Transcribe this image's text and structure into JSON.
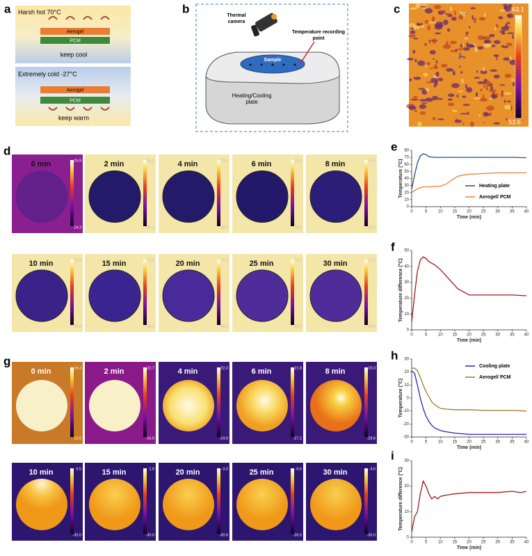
{
  "panel_labels": [
    "a",
    "b",
    "c",
    "d",
    "e",
    "f",
    "g",
    "h",
    "i"
  ],
  "panel_a": {
    "hot": {
      "title": "Harsh hot 70°C",
      "layers": [
        "Aerogel",
        "PCM"
      ],
      "caption": "keep cool"
    },
    "cold": {
      "title": "Extremely cold  -27°C",
      "layers": [
        "Aerogel",
        "PCM"
      ],
      "caption": "keep warm"
    }
  },
  "panel_b": {
    "camera": "Thermal camera",
    "point": "Temperature recording point",
    "sample": "Sample",
    "plate": "Heating/Cooling plate"
  },
  "panel_c": {
    "colorbar_max": "63.1",
    "colorbar_min": "53.6"
  },
  "panel_d": {
    "tiles": [
      {
        "time": "0 min",
        "max": "25.9",
        "min": "24.3"
      },
      {
        "time": "2 min",
        "max": "56.2",
        "min": "27.2"
      },
      {
        "time": "4 min",
        "max": "70.2",
        "min": "28.6"
      },
      {
        "time": "6 min",
        "max": "71.2",
        "min": "30.6"
      },
      {
        "time": "8 min",
        "max": "70.6",
        "min": "32.5"
      },
      {
        "time": "10 min",
        "max": "70.6",
        "min": "38.8"
      },
      {
        "time": "15 min",
        "max": "71.2",
        "min": "46.2"
      },
      {
        "time": "20 min",
        "max": "71.2",
        "min": "48.2"
      },
      {
        "time": "25 min",
        "max": "71.2",
        "min": "48.3"
      },
      {
        "time": "30 min",
        "max": "71.2",
        "min": "48.2"
      }
    ]
  },
  "panel_g": {
    "tiles": [
      {
        "time": "0 min",
        "max": "24.3",
        "min": "13.6"
      },
      {
        "time": "2 min",
        "max": "22.7",
        "min": "-16.9"
      },
      {
        "time": "4 min",
        "max": "22.3",
        "min": "-24.9"
      },
      {
        "time": "6 min",
        "max": "21.8",
        "min": "-27.2"
      },
      {
        "time": "8 min",
        "max": "15.0",
        "min": "-29.6"
      },
      {
        "time": "10 min",
        "max": "0.5",
        "min": "-30.0"
      },
      {
        "time": "15 min",
        "max": "1.9",
        "min": "-30.0"
      },
      {
        "time": "20 min",
        "max": "-3.3",
        "min": "-30.0"
      },
      {
        "time": "25 min",
        "max": "-5.6",
        "min": "-30.0"
      },
      {
        "time": "30 min",
        "max": "-3.6",
        "min": "-30.0"
      }
    ]
  },
  "chart_data": [
    {
      "type": "line",
      "xlabel": "Time (min)",
      "ylabel": "Temperature (°C)",
      "x": [
        0,
        1,
        2,
        3,
        4,
        5,
        6,
        8,
        10,
        12,
        14,
        16,
        18,
        20,
        25,
        30,
        35,
        40
      ],
      "series": [
        {
          "name": "Heating plate",
          "color": "#1f4e8c",
          "values": [
            25,
            45,
            62,
            72,
            75,
            74,
            71,
            70,
            70,
            70,
            70,
            70,
            70,
            70,
            70,
            70,
            70,
            69.5
          ]
        },
        {
          "name": "Aerogel/ PCM",
          "color": "#f47c30",
          "values": [
            20,
            23,
            25,
            27,
            28,
            28,
            28,
            29,
            29,
            32,
            38,
            43,
            45,
            46,
            47,
            48,
            48,
            48
          ]
        }
      ],
      "xlim": [
        0,
        40
      ],
      "xticks": [
        0,
        5,
        10,
        15,
        20,
        25,
        30,
        35,
        40
      ],
      "ylim": [
        0,
        80
      ],
      "yticks": [
        0,
        10,
        20,
        30,
        40,
        50,
        60,
        70,
        80
      ],
      "legend": "lower right"
    },
    {
      "type": "line",
      "xlabel": "Time (min)",
      "ylabel": "Temperature difference (°C)",
      "x": [
        0,
        1,
        2,
        3,
        4,
        5,
        6,
        8,
        10,
        12,
        14,
        16,
        18,
        20,
        25,
        30,
        35,
        40
      ],
      "values": [
        5,
        22,
        37,
        44,
        46,
        45,
        43,
        41,
        38,
        34,
        30,
        26,
        24,
        22,
        22,
        22,
        22,
        21.5
      ],
      "color": "#a01818",
      "xlim": [
        0,
        40
      ],
      "xticks": [
        0,
        5,
        10,
        15,
        20,
        25,
        30,
        35,
        40
      ],
      "ylim": [
        0,
        50
      ],
      "yticks": [
        0,
        10,
        20,
        30,
        40,
        50
      ]
    },
    {
      "type": "line",
      "xlabel": "Time (min)",
      "ylabel": "Temperature (°C)",
      "x": [
        0,
        1,
        2,
        3,
        4,
        5,
        6,
        7,
        8,
        10,
        12,
        15,
        20,
        25,
        30,
        35,
        40
      ],
      "series": [
        {
          "name": "Cooling plate",
          "color": "#2222c0",
          "values": [
            21,
            19,
            10,
            0,
            -8,
            -14,
            -18,
            -21,
            -23,
            -25,
            -26,
            -27,
            -28,
            -28,
            -28,
            -28,
            -28
          ]
        },
        {
          "name": "Aerogel/ PCM",
          "color": "#a07a2c",
          "values": [
            23,
            23,
            21,
            16,
            10,
            5,
            1,
            -3,
            -5,
            -8,
            -8.5,
            -9,
            -9,
            -9.5,
            -9.5,
            -9.5,
            -10
          ]
        }
      ],
      "xlim": [
        0,
        40
      ],
      "xticks": [
        0,
        5,
        10,
        15,
        20,
        25,
        30,
        35,
        40
      ],
      "ylim": [
        -30,
        30
      ],
      "yticks": [
        -30,
        -20,
        -10,
        0,
        10,
        20,
        30
      ],
      "legend": "upper right"
    },
    {
      "type": "line",
      "xlabel": "Time (min)",
      "ylabel": "Temperature difference (°C)",
      "x": [
        0,
        1,
        2,
        3,
        4,
        5,
        6,
        7,
        8,
        9,
        10,
        12,
        15,
        20,
        25,
        30,
        35,
        38,
        40
      ],
      "values": [
        2,
        8,
        10,
        17,
        22,
        20,
        17,
        15,
        16,
        15,
        16,
        16.5,
        17,
        17.5,
        17.5,
        17.5,
        18,
        17.5,
        18
      ],
      "color": "#a01818",
      "xlim": [
        0,
        40
      ],
      "xticks": [
        0,
        5,
        10,
        15,
        20,
        25,
        30,
        35,
        40
      ],
      "ylim": [
        0,
        30
      ],
      "yticks": [
        0,
        10,
        20,
        30
      ]
    }
  ]
}
